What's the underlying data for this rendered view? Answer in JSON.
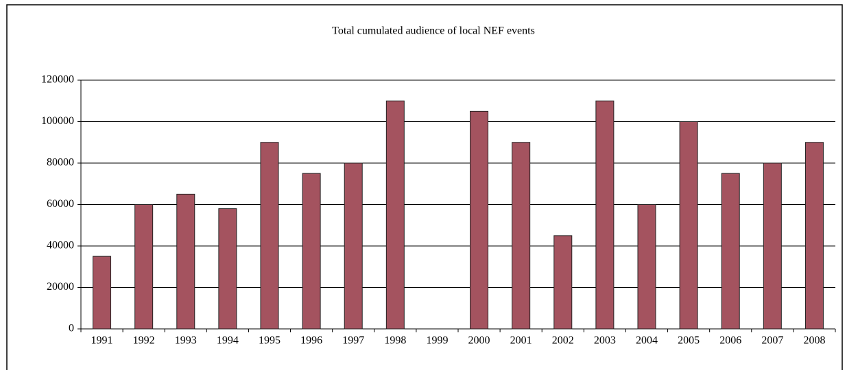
{
  "chart_data": {
    "type": "bar",
    "title": "Total cumulated audience of local NEF events",
    "categories": [
      "1991",
      "1992",
      "1993",
      "1994",
      "1995",
      "1996",
      "1997",
      "1998",
      "1999",
      "2000",
      "2001",
      "2002",
      "2003",
      "2004",
      "2005",
      "2006",
      "2007",
      "2008"
    ],
    "values": [
      35000,
      60000,
      65000,
      58000,
      90000,
      75000,
      80000,
      110000,
      0,
      105000,
      90000,
      45000,
      110000,
      60000,
      100000,
      75000,
      80000,
      90000
    ],
    "color": "#a4535f",
    "ylim": [
      0,
      120000
    ],
    "yticks": [
      0,
      20000,
      40000,
      60000,
      80000,
      100000,
      120000
    ],
    "grid": true
  }
}
